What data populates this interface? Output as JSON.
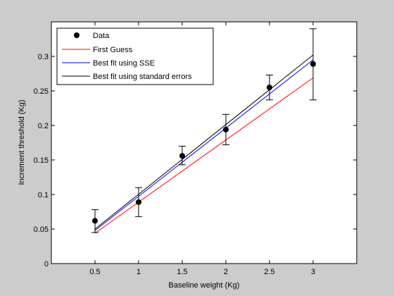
{
  "chart_data": {
    "type": "scatter",
    "title": "",
    "xlabel": "Baseline weight (Kg)",
    "ylabel": "Increment threshold (Kg)",
    "xlim": [
      0,
      3.5
    ],
    "ylim": [
      0,
      0.35
    ],
    "xticks": [
      "0.5",
      "1",
      "1.5",
      "2",
      "2.5",
      "3"
    ],
    "yticks": [
      "0",
      "0.05",
      "0.1",
      "0.15",
      "0.2",
      "0.25",
      "0.3"
    ],
    "grid": false,
    "legend_position": "top-left",
    "data": {
      "name": "Data",
      "color": "#000000",
      "x": [
        0.5,
        1,
        1.5,
        2,
        2.5,
        3
      ],
      "y": [
        0.062,
        0.089,
        0.156,
        0.194,
        0.255,
        0.289
      ],
      "err_low": [
        0.045,
        0.068,
        0.143,
        0.172,
        0.237,
        0.237
      ],
      "err_high": [
        0.078,
        0.11,
        0.17,
        0.216,
        0.273,
        0.34
      ]
    },
    "series": [
      {
        "name": "First Guess",
        "color": "#ff0000",
        "x": [
          0.5,
          3
        ],
        "y": [
          0.044,
          0.269
        ]
      },
      {
        "name": "Best fit using SSE",
        "color": "#0000ff",
        "x": [
          0.5,
          3
        ],
        "y": [
          0.048,
          0.295
        ]
      },
      {
        "name": "Best fit using standard errors",
        "color": "#000000",
        "x": [
          0.5,
          3
        ],
        "y": [
          0.05,
          0.302
        ]
      }
    ]
  }
}
